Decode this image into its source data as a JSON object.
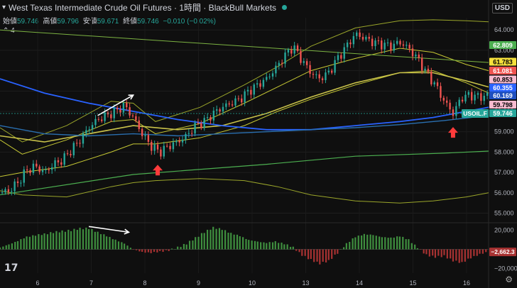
{
  "header": {
    "title": "West Texas Intermediate Crude Oil Futures · 1時間 · BlackBull Markets",
    "icon": "chevron-down-icon"
  },
  "ohlc": {
    "open_label": "始値",
    "open": "59.746",
    "high_label": "高値",
    "high": "59.796",
    "low_label": "安値",
    "low": "59.671",
    "close_label": "終値",
    "close": "59.746",
    "change": "−0.010 (−0.02%)"
  },
  "collapse": {
    "icon": "chevron-up-icon",
    "count": "4"
  },
  "currency": "USD",
  "colors": {
    "up": "#26a69a",
    "down": "#ef5350",
    "bg": "#0f0f0f",
    "band_outer": "#9aa52a",
    "band_inner": "#c6c834",
    "green_line": "#4caf50",
    "blue_line": "#2962ff",
    "trend": "#7cb342",
    "arrow": "#ff3b3b"
  },
  "chart_data": {
    "type": "line",
    "price_range": [
      54.6,
      64.6
    ],
    "x_ticks": [
      "6",
      "7",
      "8",
      "9",
      "10",
      "13",
      "14",
      "15",
      "16"
    ],
    "y_ticks": [
      "64.000",
      "63.000",
      "62.000",
      "61.000",
      "60.000",
      "59.000",
      "58.000",
      "57.000",
      "56.000",
      "55.000"
    ],
    "close_path": [
      [
        0,
        56.0
      ],
      [
        4,
        56.1
      ],
      [
        8,
        56.5
      ],
      [
        12,
        57.1
      ],
      [
        16,
        57.3
      ],
      [
        20,
        57.0
      ],
      [
        24,
        57.4
      ],
      [
        28,
        57.6
      ],
      [
        32,
        58.1
      ],
      [
        36,
        58.6
      ],
      [
        40,
        59.2
      ],
      [
        44,
        59.6
      ],
      [
        48,
        59.8
      ],
      [
        52,
        60.0
      ],
      [
        56,
        60.3
      ],
      [
        60,
        59.7
      ],
      [
        64,
        58.9
      ],
      [
        68,
        58.3
      ],
      [
        72,
        58.0
      ],
      [
        76,
        58.3
      ],
      [
        80,
        58.5
      ],
      [
        84,
        58.8
      ],
      [
        88,
        59.3
      ],
      [
        92,
        59.5
      ],
      [
        96,
        59.9
      ],
      [
        100,
        60.2
      ],
      [
        104,
        60.4
      ],
      [
        108,
        60.6
      ],
      [
        112,
        61.0
      ],
      [
        116,
        61.3
      ],
      [
        120,
        61.6
      ],
      [
        124,
        62.1
      ],
      [
        128,
        62.7
      ],
      [
        132,
        63.2
      ],
      [
        136,
        62.5
      ],
      [
        140,
        61.9
      ],
      [
        144,
        61.6
      ],
      [
        148,
        61.9
      ],
      [
        152,
        62.6
      ],
      [
        156,
        63.2
      ],
      [
        160,
        63.8
      ],
      [
        164,
        63.6
      ],
      [
        168,
        63.4
      ],
      [
        172,
        63.3
      ],
      [
        176,
        63.2
      ],
      [
        180,
        63.4
      ],
      [
        184,
        63.1
      ],
      [
        188,
        62.6
      ],
      [
        192,
        61.9
      ],
      [
        196,
        61.3
      ],
      [
        200,
        60.5
      ],
      [
        204,
        59.9
      ],
      [
        208,
        60.7
      ],
      [
        212,
        60.8
      ],
      [
        216,
        60.7
      ],
      [
        220,
        60.8
      ]
    ],
    "series": [
      {
        "values": [
          [
            0,
            59.2
          ],
          [
            10,
            58.5
          ],
          [
            30,
            59.3
          ],
          [
            50,
            60.5
          ],
          [
            60,
            60.4
          ],
          [
            70,
            59.5
          ],
          [
            90,
            60.2
          ],
          [
            110,
            61.3
          ],
          [
            125,
            62.2
          ],
          [
            140,
            63.2
          ],
          [
            160,
            64.1
          ],
          [
            180,
            64.45
          ],
          [
            195,
            64.5
          ],
          [
            210,
            64.45
          ],
          [
            220,
            64.4
          ]
        ]
      },
      {
        "values": [
          [
            0,
            56.1
          ],
          [
            10,
            55.9
          ],
          [
            30,
            55.8
          ],
          [
            50,
            56.3
          ],
          [
            60,
            56.5
          ],
          [
            70,
            56.6
          ],
          [
            90,
            56.7
          ],
          [
            110,
            56.6
          ],
          [
            125,
            56.3
          ],
          [
            140,
            55.9
          ],
          [
            160,
            55.6
          ],
          [
            180,
            55.5
          ],
          [
            195,
            55.6
          ],
          [
            210,
            55.8
          ],
          [
            220,
            56.0
          ]
        ]
      },
      {
        "values": [
          [
            0,
            58.6
          ],
          [
            10,
            57.9
          ],
          [
            30,
            58.6
          ],
          [
            50,
            59.5
          ],
          [
            60,
            59.6
          ],
          [
            70,
            58.9
          ],
          [
            90,
            59.4
          ],
          [
            110,
            60.4
          ],
          [
            125,
            61.2
          ],
          [
            140,
            62.0
          ],
          [
            160,
            62.6
          ],
          [
            180,
            63.1
          ],
          [
            195,
            62.9
          ],
          [
            210,
            62.3
          ],
          [
            220,
            62.0
          ]
        ]
      },
      {
        "values": [
          [
            0,
            56.8
          ],
          [
            10,
            57.0
          ],
          [
            30,
            57.3
          ],
          [
            50,
            58.0
          ],
          [
            60,
            58.4
          ],
          [
            70,
            58.4
          ],
          [
            90,
            58.7
          ],
          [
            110,
            59.3
          ],
          [
            125,
            60.0
          ],
          [
            140,
            60.6
          ],
          [
            160,
            61.3
          ],
          [
            180,
            61.9
          ],
          [
            195,
            62.0
          ],
          [
            210,
            61.4
          ],
          [
            220,
            60.9
          ]
        ]
      },
      {
        "values": [
          [
            0,
            58.8
          ],
          [
            20,
            58.5
          ],
          [
            40,
            58.9
          ],
          [
            60,
            59.3
          ],
          [
            80,
            59.1
          ],
          [
            100,
            59.3
          ],
          [
            120,
            59.9
          ],
          [
            140,
            60.7
          ],
          [
            160,
            61.4
          ],
          [
            180,
            61.9
          ],
          [
            195,
            61.9
          ],
          [
            210,
            61.5
          ],
          [
            220,
            61.2
          ]
        ]
      },
      {
        "values": [
          [
            0,
            61.6
          ],
          [
            20,
            60.9
          ],
          [
            40,
            60.4
          ],
          [
            60,
            60.0
          ],
          [
            80,
            59.6
          ],
          [
            100,
            59.3
          ],
          [
            120,
            59.1
          ],
          [
            140,
            59.1
          ],
          [
            160,
            59.3
          ],
          [
            180,
            59.5
          ],
          [
            195,
            59.7
          ],
          [
            210,
            60.0
          ],
          [
            220,
            60.2
          ]
        ]
      },
      {
        "values": [
          [
            0,
            59.3
          ],
          [
            20,
            58.9
          ],
          [
            40,
            58.8
          ],
          [
            60,
            58.9
          ],
          [
            80,
            58.8
          ],
          [
            100,
            58.9
          ],
          [
            120,
            59.0
          ],
          [
            140,
            59.1
          ],
          [
            160,
            59.2
          ],
          [
            180,
            59.35
          ],
          [
            200,
            59.55
          ],
          [
            220,
            59.8
          ]
        ]
      },
      {
        "values": [
          [
            0,
            55.9
          ],
          [
            60,
            56.9
          ],
          [
            120,
            57.4
          ],
          [
            160,
            57.8
          ],
          [
            200,
            57.95
          ],
          [
            220,
            58.05
          ]
        ]
      },
      {
        "values": [
          [
            0,
            64.0
          ],
          [
            220,
            62.4
          ]
        ]
      }
    ],
    "price_labels": [
      {
        "text": "62.809",
        "bg": "#4caf50",
        "fg": "#ffffff"
      },
      {
        "text": "61.783",
        "bg": "#f5e13c",
        "fg": "#000000"
      },
      {
        "text": "61.081",
        "bg": "#ef5350",
        "fg": "#ffffff"
      },
      {
        "text": "60.853",
        "bg": "#f8bbd0",
        "fg": "#000000"
      },
      {
        "text": "60.355",
        "bg": "#2962ff",
        "fg": "#ffffff"
      },
      {
        "text": "60.169",
        "bg": "#1e4fbf",
        "fg": "#ffffff"
      },
      {
        "text": "59.798",
        "bg": "#f8bbd0",
        "fg": "#000000"
      },
      {
        "text": "59.746",
        "bg": "#26a69a",
        "fg": "#ffffff"
      }
    ],
    "last_symbol": "USOIL.F",
    "osc_range": [
      -25000,
      25000
    ],
    "osc_ticks": [
      "20,000",
      "0",
      "−20,000"
    ],
    "osc_current": "−2,662.3",
    "oscillator": [
      [
        0,
        2000
      ],
      [
        4,
        5000
      ],
      [
        8,
        9000
      ],
      [
        12,
        13000
      ],
      [
        16,
        15000
      ],
      [
        20,
        16000
      ],
      [
        24,
        18000
      ],
      [
        28,
        19000
      ],
      [
        32,
        20000
      ],
      [
        36,
        22000
      ],
      [
        40,
        22000
      ],
      [
        44,
        18000
      ],
      [
        48,
        14000
      ],
      [
        52,
        10000
      ],
      [
        56,
        6000
      ],
      [
        60,
        0
      ],
      [
        64,
        -3000
      ],
      [
        68,
        -3500
      ],
      [
        72,
        -2500
      ],
      [
        76,
        -1000
      ],
      [
        80,
        2000
      ],
      [
        84,
        6000
      ],
      [
        88,
        12000
      ],
      [
        92,
        18000
      ],
      [
        96,
        23000
      ],
      [
        100,
        21000
      ],
      [
        104,
        17000
      ],
      [
        108,
        14000
      ],
      [
        112,
        10000
      ],
      [
        116,
        8000
      ],
      [
        120,
        7000
      ],
      [
        124,
        8000
      ],
      [
        128,
        6000
      ],
      [
        132,
        2000
      ],
      [
        136,
        -6000
      ],
      [
        140,
        -11000
      ],
      [
        144,
        -15000
      ],
      [
        148,
        -12000
      ],
      [
        152,
        -4000
      ],
      [
        156,
        6000
      ],
      [
        160,
        13000
      ],
      [
        164,
        16000
      ],
      [
        168,
        15000
      ],
      [
        172,
        13000
      ],
      [
        176,
        12000
      ],
      [
        180,
        14000
      ],
      [
        184,
        10000
      ],
      [
        188,
        2000
      ],
      [
        192,
        -6000
      ],
      [
        196,
        -8000
      ],
      [
        200,
        -7000
      ],
      [
        204,
        -12000
      ],
      [
        208,
        -14000
      ],
      [
        212,
        -9000
      ],
      [
        216,
        -5000
      ],
      [
        220,
        -2662
      ]
    ],
    "annotations": [
      {
        "type": "arrow-right",
        "x1": 44,
        "y1": 59.8,
        "x2": 60,
        "y2": 60.8
      },
      {
        "type": "arrow-up",
        "x": 71,
        "y": 57.1
      },
      {
        "type": "arrow-up",
        "x": 204,
        "y": 58.95
      },
      {
        "type": "arrow-right-osc",
        "x1": 40,
        "v1": 24000,
        "x2": 58,
        "v2": 18000
      }
    ]
  }
}
